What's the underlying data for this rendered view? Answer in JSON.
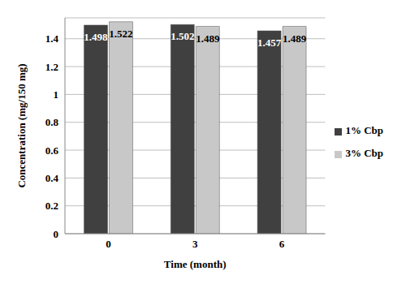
{
  "chart_data": {
    "type": "bar",
    "categories": [
      "0",
      "3",
      "6"
    ],
    "series": [
      {
        "name": "1% Cbp",
        "color": "#404040",
        "values": [
          1.498,
          1.502,
          1.457
        ]
      },
      {
        "name": "3% Cbp",
        "color": "#c8c8c8",
        "values": [
          1.522,
          1.489,
          1.489
        ]
      }
    ],
    "ylim": [
      0,
      1.55
    ],
    "yticks": [
      0,
      0.2,
      0.4,
      0.6,
      0.8,
      1,
      1.2,
      1.4
    ],
    "xlabel": "Time (month)",
    "ylabel": "Concentration (mg/150 mg)",
    "grid": true,
    "legend": "right",
    "data_labels": true
  }
}
